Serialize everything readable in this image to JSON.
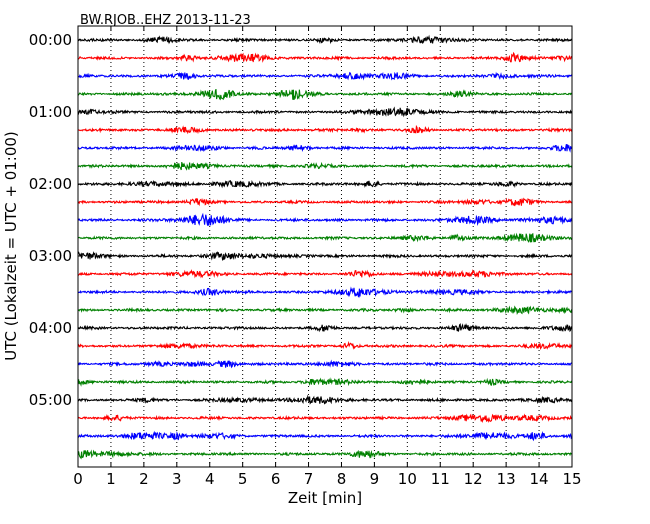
{
  "chart_data": {
    "type": "line",
    "title": "BW.RJOB..EHZ 2013-11-23",
    "xlabel": "Zeit  [min]",
    "ylabel": "UTC (Lokalzeit = UTC + 01:00)",
    "xlim": [
      0,
      15
    ],
    "x_ticks": [
      "0",
      "1",
      "2",
      "3",
      "4",
      "5",
      "6",
      "7",
      "8",
      "9",
      "10",
      "11",
      "12",
      "13",
      "14",
      "15"
    ],
    "y_tick_labels": [
      "00:00",
      "01:00",
      "02:00",
      "03:00",
      "04:00",
      "05:00"
    ],
    "trace_interval_min": 15,
    "trace_count": 24,
    "trace_colors": [
      "#000000",
      "#ff0000",
      "#0000ff",
      "#008000"
    ],
    "grid": "vertical dotted"
  }
}
